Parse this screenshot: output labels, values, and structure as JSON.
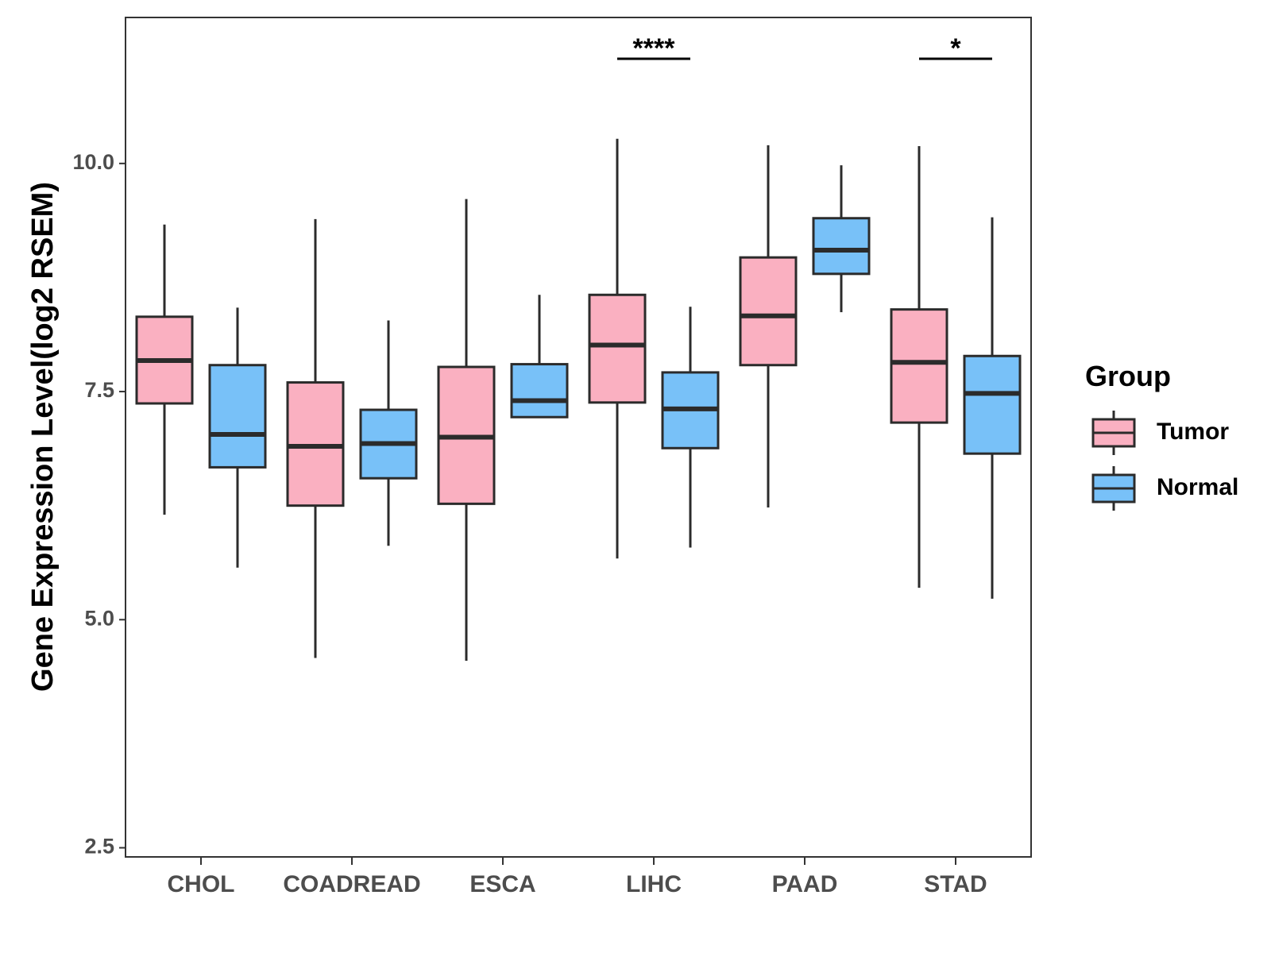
{
  "chart_data": {
    "type": "boxplot",
    "ylabel": "Gene Expression Level(log2 RSEM)",
    "xlabel": "",
    "ylim": [
      2.4,
      11.6
    ],
    "yticks": [
      2.5,
      5.0,
      7.5,
      10.0
    ],
    "ytick_labels": [
      "2.5",
      "5.0",
      "7.5",
      "10.0"
    ],
    "categories": [
      "CHOL",
      "COADREAD",
      "ESCA",
      "LIHC",
      "PAAD",
      "STAD"
    ],
    "legend": {
      "title": "Group",
      "position": "right",
      "entries": [
        {
          "name": "Tumor",
          "color": "#FAB0C1"
        },
        {
          "name": "Normal",
          "color": "#78C1F8"
        }
      ]
    },
    "series": [
      {
        "name": "Tumor",
        "color": "#FAB0C1",
        "boxes": [
          {
            "category": "CHOL",
            "whisker_low": 6.15,
            "q1": 7.37,
            "median": 7.84,
            "q3": 8.32,
            "whisker_high": 9.33
          },
          {
            "category": "COADREAD",
            "whisker_low": 4.58,
            "q1": 6.25,
            "median": 6.9,
            "q3": 7.6,
            "whisker_high": 9.39
          },
          {
            "category": "ESCA",
            "whisker_low": 4.55,
            "q1": 6.27,
            "median": 7.0,
            "q3": 7.77,
            "whisker_high": 9.61
          },
          {
            "category": "LIHC",
            "whisker_low": 5.67,
            "q1": 7.38,
            "median": 8.01,
            "q3": 8.56,
            "whisker_high": 10.27
          },
          {
            "category": "PAAD",
            "whisker_low": 6.23,
            "q1": 7.79,
            "median": 8.33,
            "q3": 8.97,
            "whisker_high": 10.2
          },
          {
            "category": "STAD",
            "whisker_low": 5.35,
            "q1": 7.16,
            "median": 7.82,
            "q3": 8.4,
            "whisker_high": 10.19
          }
        ]
      },
      {
        "name": "Normal",
        "color": "#78C1F8",
        "boxes": [
          {
            "category": "CHOL",
            "whisker_low": 5.57,
            "q1": 6.67,
            "median": 7.03,
            "q3": 7.79,
            "whisker_high": 8.42
          },
          {
            "category": "COADREAD",
            "whisker_low": 5.81,
            "q1": 6.55,
            "median": 6.93,
            "q3": 7.3,
            "whisker_high": 8.28
          },
          {
            "category": "ESCA",
            "whisker_low": 7.22,
            "q1": 7.22,
            "median": 7.4,
            "q3": 7.8,
            "whisker_high": 8.56
          },
          {
            "category": "LIHC",
            "whisker_low": 5.79,
            "q1": 6.88,
            "median": 7.31,
            "q3": 7.71,
            "whisker_high": 8.43
          },
          {
            "category": "PAAD",
            "whisker_low": 8.37,
            "q1": 8.79,
            "median": 9.05,
            "q3": 9.4,
            "whisker_high": 9.98
          },
          {
            "category": "STAD",
            "whisker_low": 5.23,
            "q1": 6.82,
            "median": 7.48,
            "q3": 7.89,
            "whisker_high": 9.41
          }
        ]
      }
    ],
    "significance": [
      {
        "category": "LIHC",
        "label": "****"
      },
      {
        "category": "STAD",
        "label": "*"
      }
    ]
  }
}
